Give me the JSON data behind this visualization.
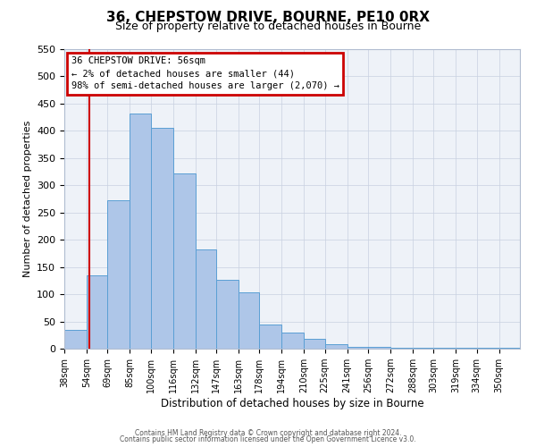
{
  "title": "36, CHEPSTOW DRIVE, BOURNE, PE10 0RX",
  "subtitle": "Size of property relative to detached houses in Bourne",
  "xlabel": "Distribution of detached houses by size in Bourne",
  "ylabel": "Number of detached properties",
  "bar_labels": [
    "38sqm",
    "54sqm",
    "69sqm",
    "85sqm",
    "100sqm",
    "116sqm",
    "132sqm",
    "147sqm",
    "163sqm",
    "178sqm",
    "194sqm",
    "210sqm",
    "225sqm",
    "241sqm",
    "256sqm",
    "272sqm",
    "288sqm",
    "303sqm",
    "319sqm",
    "334sqm",
    "350sqm"
  ],
  "bar_values": [
    35,
    135,
    272,
    432,
    405,
    322,
    183,
    127,
    103,
    45,
    30,
    18,
    8,
    3,
    3,
    2,
    2,
    2,
    2,
    2,
    2
  ],
  "bar_left_edges": [
    38,
    54,
    69,
    85,
    100,
    116,
    132,
    147,
    163,
    178,
    194,
    210,
    225,
    241,
    256,
    272,
    288,
    303,
    319,
    334,
    350
  ],
  "bar_widths": [
    16,
    15,
    16,
    15,
    16,
    16,
    15,
    16,
    15,
    16,
    16,
    15,
    16,
    15,
    16,
    16,
    15,
    16,
    15,
    16,
    15
  ],
  "bar_color": "#aec6e8",
  "bar_edgecolor": "#5a9fd4",
  "vline_x": 56,
  "vline_color": "#cc0000",
  "ylim": [
    0,
    550
  ],
  "yticks": [
    0,
    50,
    100,
    150,
    200,
    250,
    300,
    350,
    400,
    450,
    500,
    550
  ],
  "annotation_title": "36 CHEPSTOW DRIVE: 56sqm",
  "annotation_line1": "← 2% of detached houses are smaller (44)",
  "annotation_line2": "98% of semi-detached houses are larger (2,070) →",
  "annotation_box_color": "#cc0000",
  "bg_color": "#eef2f8",
  "footer1": "Contains HM Land Registry data © Crown copyright and database right 2024.",
  "footer2": "Contains public sector information licensed under the Open Government Licence v3.0."
}
